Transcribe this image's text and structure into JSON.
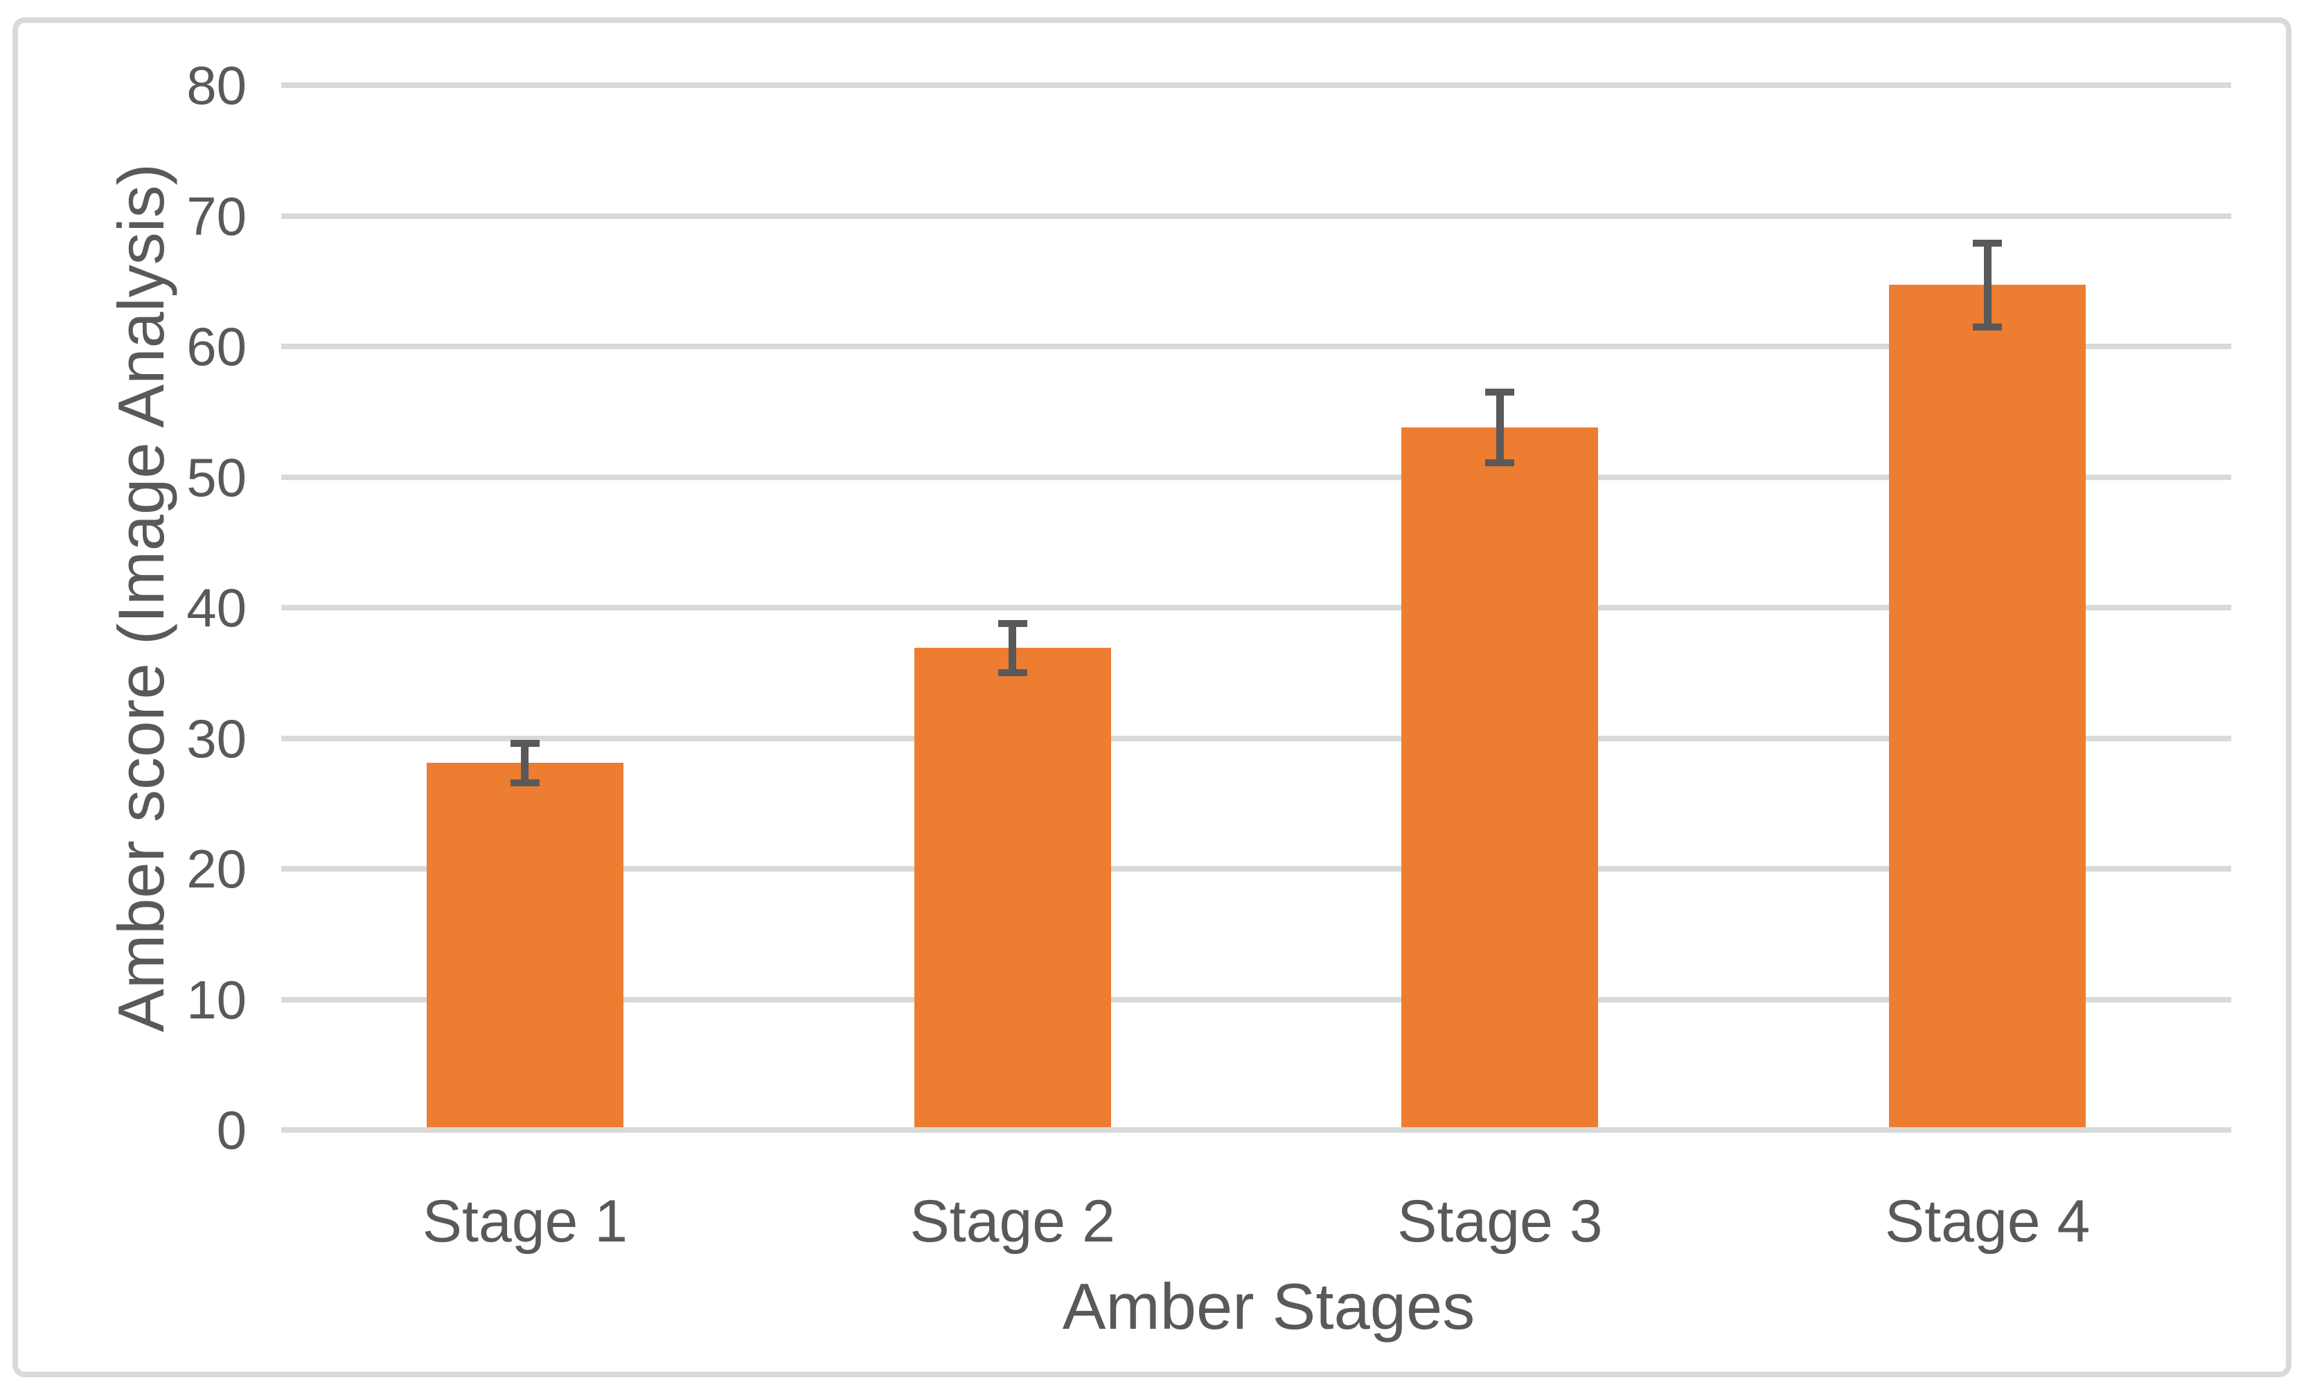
{
  "chart_data": {
    "type": "bar",
    "title": "",
    "categories": [
      "Stage 1",
      "Stage 2",
      "Stage 3",
      "Stage 4"
    ],
    "values": [
      28.1,
      36.9,
      53.8,
      64.7
    ],
    "error_bars": {
      "plus": [
        1.5,
        1.9,
        2.7,
        3.2
      ],
      "minus": [
        1.5,
        1.9,
        2.7,
        3.2
      ]
    },
    "xlabel": "Amber Stages",
    "ylabel": "Amber score (Image Analysis)",
    "ylim": [
      0,
      80
    ],
    "yticks": [
      0,
      10,
      20,
      30,
      40,
      50,
      60,
      70,
      80
    ],
    "grid": true,
    "legend_position": "none",
    "colors": {
      "bar": "#ED7D31",
      "error_bar": "#595959",
      "gridline": "#D9D9D9",
      "axis_line": "#D9D9D9",
      "text": "#595959",
      "frame_border": "#D9D9D9",
      "background": "#FFFFFF"
    }
  }
}
